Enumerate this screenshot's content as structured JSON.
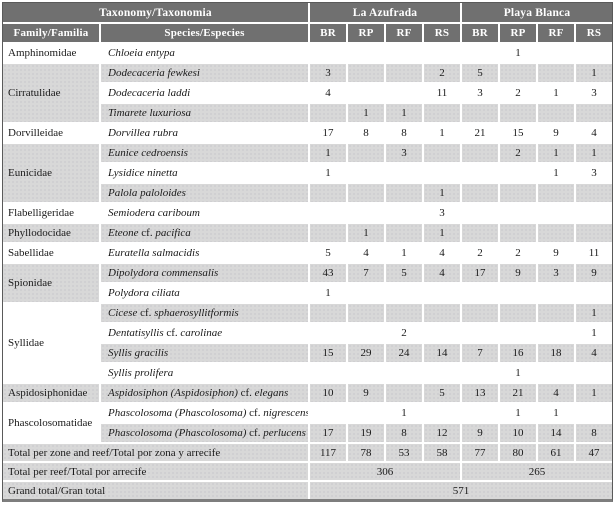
{
  "colors": {
    "header_bg": "#707070",
    "header_text": "#ffffff",
    "shaded_row": "#d8d8d8",
    "outer_border": "#5a5a5a"
  },
  "chart_data": {
    "type": "table",
    "header": {
      "taxonomy": "Taxonomy/Taxonomia",
      "family": "Family/Familia",
      "species": "Species/Especies",
      "site1": "La Azufrada",
      "site2": "Playa Blanca",
      "zone_cols": [
        "BR",
        "RP",
        "RF",
        "RS"
      ]
    },
    "families": [
      {
        "name": "Amphinomidae",
        "species": [
          {
            "name": "Chloeia entypa",
            "values": [
              "",
              "",
              "",
              "",
              "",
              "1",
              "",
              ""
            ]
          }
        ]
      },
      {
        "name": "Cirratulidae",
        "species": [
          {
            "name": "Dodecaceria fewkesi",
            "values": [
              "3",
              "",
              "",
              "2",
              "5",
              "",
              "",
              "1"
            ]
          },
          {
            "name": "Dodecaceria laddi",
            "values": [
              "4",
              "",
              "",
              "11",
              "3",
              "2",
              "1",
              "3"
            ]
          },
          {
            "name": "Timarete luxuriosa",
            "values": [
              "",
              "1",
              "1",
              "",
              "",
              "",
              "",
              ""
            ]
          }
        ]
      },
      {
        "name": "Dorvilleidae",
        "species": [
          {
            "name": "Dorvillea rubra",
            "values": [
              "17",
              "8",
              "8",
              "1",
              "21",
              "15",
              "9",
              "4"
            ]
          }
        ]
      },
      {
        "name": "Eunicidae",
        "species": [
          {
            "name": "Eunice cedroensis",
            "values": [
              "1",
              "",
              "3",
              "",
              "",
              "2",
              "1",
              "1"
            ]
          },
          {
            "name": "Lysidice ninetta",
            "values": [
              "1",
              "",
              "",
              "",
              "",
              "",
              "1",
              "3"
            ]
          },
          {
            "name": "Palola paloloides",
            "values": [
              "",
              "",
              "",
              "1",
              "",
              "",
              "",
              ""
            ]
          }
        ]
      },
      {
        "name": "Flabelligeridae",
        "species": [
          {
            "name": "Semiodera cariboum",
            "values": [
              "",
              "",
              "",
              "3",
              "",
              "",
              "",
              ""
            ]
          }
        ]
      },
      {
        "name": "Phyllodocidae",
        "species": [
          {
            "name": "Eteone cf. pacifica",
            "values": [
              "",
              "1",
              "",
              "1",
              "",
              "",
              "",
              ""
            ]
          }
        ]
      },
      {
        "name": "Sabellidae",
        "species": [
          {
            "name": "Euratella salmacidis",
            "values": [
              "5",
              "4",
              "1",
              "4",
              "2",
              "2",
              "9",
              "11"
            ]
          }
        ]
      },
      {
        "name": "Spionidae",
        "species": [
          {
            "name": "Dipolydora commensalis",
            "values": [
              "43",
              "7",
              "5",
              "4",
              "17",
              "9",
              "3",
              "9"
            ]
          },
          {
            "name": "Polydora ciliata",
            "values": [
              "1",
              "",
              "",
              "",
              "",
              "",
              "",
              ""
            ]
          }
        ]
      },
      {
        "name": "Syllidae",
        "species": [
          {
            "name": "Cicese cf. sphaerosyllitformis",
            "values": [
              "",
              "",
              "",
              "",
              "",
              "",
              "",
              "1"
            ]
          },
          {
            "name": "Dentatisyllis cf. carolinae",
            "values": [
              "",
              "",
              "2",
              "",
              "",
              "",
              "",
              "1"
            ]
          },
          {
            "name": "Syllis gracilis",
            "values": [
              "15",
              "29",
              "24",
              "14",
              "7",
              "16",
              "18",
              "4"
            ]
          },
          {
            "name": "Syllis prolifera",
            "values": [
              "",
              "",
              "",
              "",
              "",
              "1",
              "",
              ""
            ]
          }
        ]
      },
      {
        "name": "Aspidosiphonidae",
        "species": [
          {
            "name": "Aspidosiphon (Aspidosiphon) cf. elegans",
            "values": [
              "10",
              "9",
              "",
              "5",
              "13",
              "21",
              "4",
              "1"
            ]
          }
        ]
      },
      {
        "name": "Phascolosomatidae",
        "species": [
          {
            "name": "Phascolosoma (Phascolosoma) cf. nigrescens",
            "values": [
              "",
              "",
              "1",
              "",
              "",
              "1",
              "1",
              ""
            ]
          },
          {
            "name": "Phascolosoma (Phascolosoma) cf. perlucens",
            "values": [
              "17",
              "19",
              "8",
              "12",
              "9",
              "10",
              "14",
              "8"
            ]
          }
        ]
      }
    ],
    "totals": {
      "zone_label": "Total per zone and reef/Total por zona y arrecife",
      "zone_values": [
        "117",
        "78",
        "53",
        "58",
        "77",
        "80",
        "61",
        "47"
      ],
      "reef_label": "Total per reef/Total por arrecife",
      "reef_values": [
        "306",
        "265"
      ],
      "grand_label": "Grand total/Gran total",
      "grand_value": "571"
    }
  }
}
